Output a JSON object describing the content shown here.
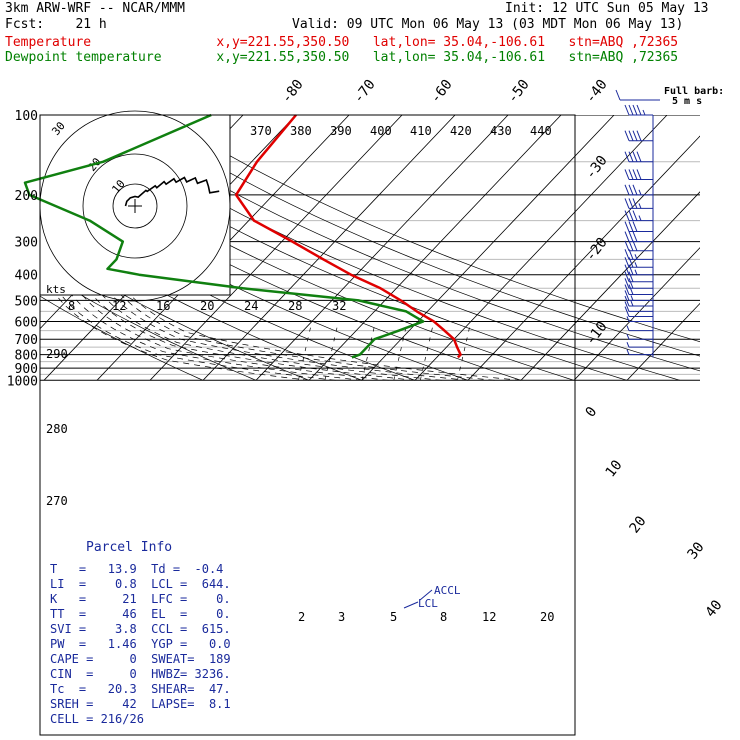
{
  "header": {
    "model": "3km ARW-WRF -- NCAR/MMM",
    "init": "Init: 12 UTC Sun 05 May 13",
    "fcst": "Fcst:    21 h",
    "valid": "Valid: 09 UTC Mon 06 May 13 (03 MDT Mon 06 May 13)",
    "temp_line": "Temperature                x,y=221.55,350.50   lat,lon= 35.04,-106.61   stn=ABQ ,72365",
    "dew_line": "Dewpoint temperature       x,y=221.55,350.50   lat,lon= 35.04,-106.61   stn=ABQ ,72365"
  },
  "colors": {
    "temperature": "#e00000",
    "dewpoint": "#108010",
    "parcel_text": "#1a2a9c",
    "barbs": "#1a2a9c",
    "grid": "#000000"
  },
  "barb_legend": {
    "line1": "Full barb:",
    "line2": "5 m s"
  },
  "annotations": {
    "accl": "ACCL",
    "lcl": "LCL",
    "kts": "kts"
  },
  "parcel_info": {
    "title": "Parcel Info",
    "rows": [
      "T   =   13.9  Td =  -0.4",
      "LI  =    0.8  LCL =  644.",
      "K   =     21  LFC =    0.",
      "TT  =     46  EL  =    0.",
      "SVI =    3.8  CCL =  615.",
      "PW  =   1.46  YGP =   0.0",
      "CAPE =     0  SWEAT=  189",
      "CIN  =     0  HWBZ= 3236.",
      "Tc  =   20.3  SHEAR=  47.",
      "SREH =    42  LAPSE=  8.1",
      "CELL = 216/26"
    ]
  },
  "chart_data": {
    "type": "line",
    "subtype": "skew-T log-P sounding",
    "pressure_axis": {
      "label_ticks": [
        100,
        200,
        300,
        400,
        500,
        600,
        700,
        800,
        900,
        1000
      ],
      "scale": "log",
      "range": [
        1000,
        100
      ]
    },
    "skewed_temperature_labels": [
      -80,
      -70,
      -60,
      -50,
      -40,
      -30,
      -20,
      -10,
      0,
      10,
      20,
      30,
      40
    ],
    "theta_e_labels": [
      370,
      380,
      390,
      400,
      410,
      420,
      430,
      440
    ],
    "hodograph_speed_labels": [
      8,
      12,
      16,
      20,
      24,
      28,
      32
    ],
    "hodograph_ring_labels": [
      "10",
      "20",
      "30"
    ],
    "mixing_ratio_labels": [
      "2",
      "3",
      "5",
      "8",
      "12",
      "20"
    ],
    "theta_left_labels": [
      "290",
      "280",
      "270"
    ],
    "series": [
      {
        "name": "Temperature",
        "color": "#e00000",
        "points": [
          [
            100,
            -60
          ],
          [
            150,
            -59
          ],
          [
            200,
            -57
          ],
          [
            250,
            -49
          ],
          [
            300,
            -38
          ],
          [
            350,
            -29
          ],
          [
            400,
            -21
          ],
          [
            450,
            -13
          ],
          [
            500,
            -7
          ],
          [
            550,
            -2
          ],
          [
            600,
            3
          ],
          [
            640,
            6
          ],
          [
            700,
            10
          ],
          [
            750,
            12
          ],
          [
            800,
            14
          ],
          [
            820,
            14
          ]
        ]
      },
      {
        "name": "Dewpoint temperature",
        "color": "#108010",
        "points": [
          [
            100,
            -76
          ],
          [
            150,
            -88
          ],
          [
            180,
            -99
          ],
          [
            200,
            -96
          ],
          [
            250,
            -80
          ],
          [
            300,
            -70
          ],
          [
            350,
            -68
          ],
          [
            380,
            -68
          ],
          [
            400,
            -61
          ],
          [
            450,
            -39
          ],
          [
            500,
            -15
          ],
          [
            550,
            -4
          ],
          [
            600,
            1
          ],
          [
            650,
            -2
          ],
          [
            700,
            -5
          ],
          [
            750,
            -5
          ],
          [
            800,
            -5
          ],
          [
            820,
            -6
          ]
        ]
      }
    ],
    "wind_barbs": [
      {
        "p": 100,
        "speed": 45,
        "dir": 260
      },
      {
        "p": 125,
        "speed": 40,
        "dir": 260
      },
      {
        "p": 150,
        "speed": 40,
        "dir": 255
      },
      {
        "p": 175,
        "speed": 40,
        "dir": 250
      },
      {
        "p": 200,
        "speed": 35,
        "dir": 250
      },
      {
        "p": 225,
        "speed": 35,
        "dir": 245
      },
      {
        "p": 250,
        "speed": 35,
        "dir": 245
      },
      {
        "p": 275,
        "speed": 30,
        "dir": 245
      },
      {
        "p": 300,
        "speed": 30,
        "dir": 240
      },
      {
        "p": 325,
        "speed": 30,
        "dir": 240
      },
      {
        "p": 350,
        "speed": 25,
        "dir": 240
      },
      {
        "p": 375,
        "speed": 25,
        "dir": 235
      },
      {
        "p": 400,
        "speed": 25,
        "dir": 235
      },
      {
        "p": 425,
        "speed": 20,
        "dir": 235
      },
      {
        "p": 450,
        "speed": 20,
        "dir": 230
      },
      {
        "p": 475,
        "speed": 20,
        "dir": 230
      },
      {
        "p": 500,
        "speed": 15,
        "dir": 230
      },
      {
        "p": 525,
        "speed": 15,
        "dir": 225
      },
      {
        "p": 550,
        "speed": 10,
        "dir": 220
      },
      {
        "p": 575,
        "speed": 10,
        "dir": 215
      },
      {
        "p": 600,
        "speed": 5,
        "dir": 200
      },
      {
        "p": 650,
        "speed": 5,
        "dir": 180
      },
      {
        "p": 700,
        "speed": 5,
        "dir": 150
      },
      {
        "p": 750,
        "speed": 5,
        "dir": 120
      },
      {
        "p": 800,
        "speed": 5,
        "dir": 90
      }
    ]
  }
}
